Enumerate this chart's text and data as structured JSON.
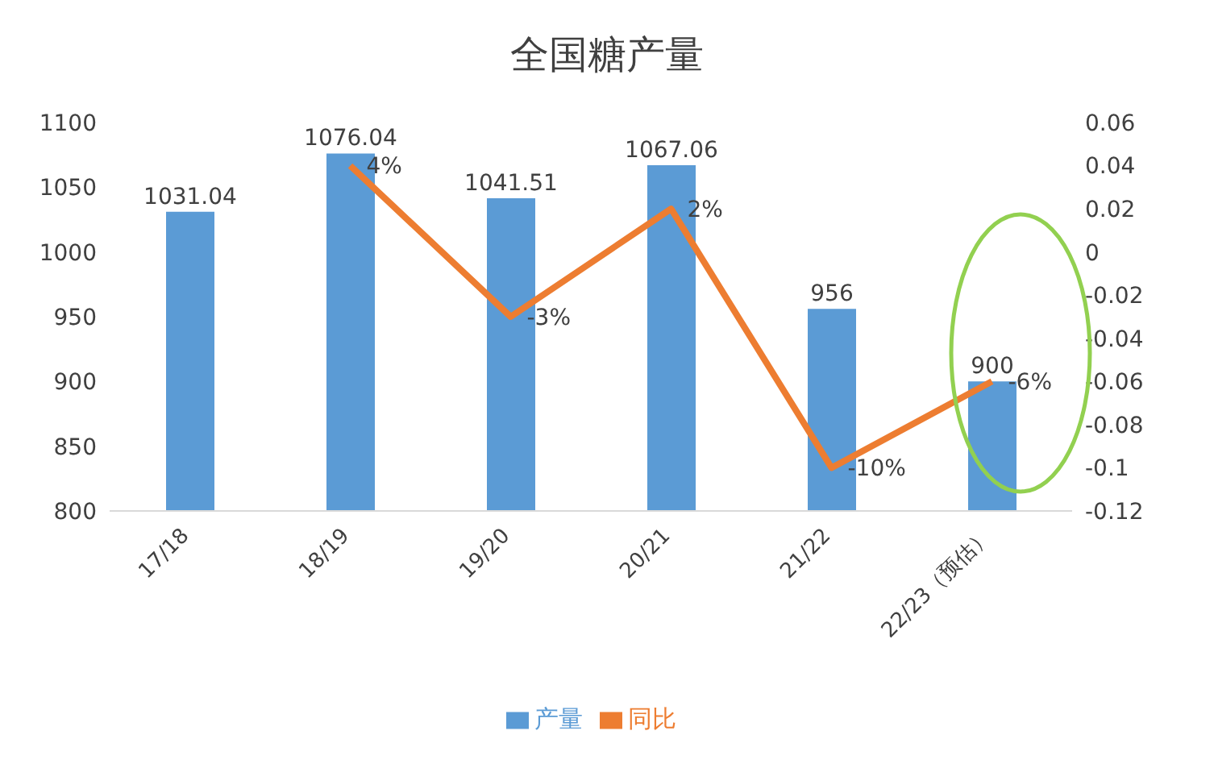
{
  "chart_data": {
    "type": "bar",
    "title": "全国糖产量",
    "categories": [
      "17/18",
      "18/19",
      "19/20",
      "20/21",
      "21/22",
      "22/23（预估）"
    ],
    "series": [
      {
        "name": "产量",
        "color": "#5b9bd5",
        "values": [
          1031.04,
          1076.04,
          1041.51,
          1067.06,
          956,
          900
        ],
        "data_labels": true
      },
      {
        "name": "同比",
        "type": "line",
        "axis": "y2",
        "color": "#ed7d31",
        "values": [
          null,
          0.04,
          -0.03,
          0.02,
          -0.1,
          -0.06
        ],
        "value_labels": [
          null,
          "4%",
          "-3%",
          "2%",
          "-10%",
          "-6%"
        ],
        "marker": "none"
      }
    ],
    "ylim": [
      800,
      1100
    ],
    "yticks": [
      800,
      850,
      900,
      950,
      1000,
      1050,
      1100
    ],
    "y2lim": [
      -0.12,
      0.06
    ],
    "y2ticks": [
      -0.12,
      -0.1,
      -0.08,
      -0.06,
      -0.04,
      -0.02,
      0,
      0.02,
      0.04,
      0.06
    ],
    "grid": false,
    "legend": "bottom"
  }
}
